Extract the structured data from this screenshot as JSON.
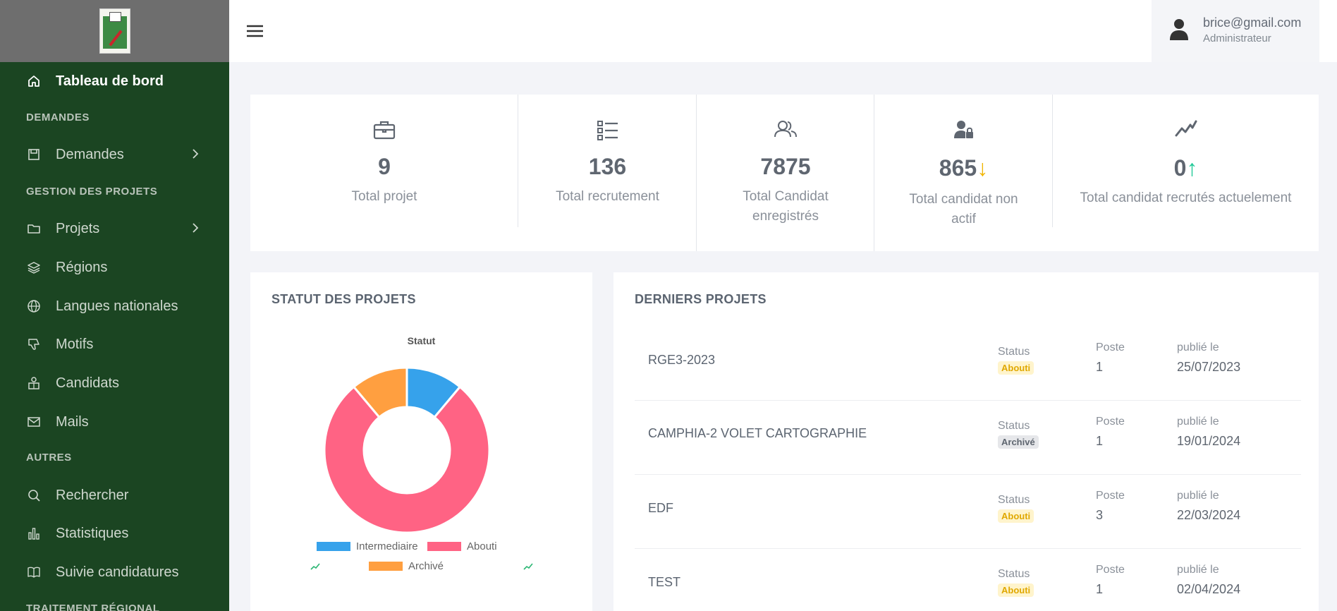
{
  "sidebar": {
    "items": [
      {
        "label": "Tableau de bord",
        "icon": "home-icon"
      },
      {
        "label": "Demandes",
        "icon": "clipboard-icon"
      },
      {
        "label": "Projets",
        "icon": "folder-icon"
      },
      {
        "label": "Régions",
        "icon": "layers-icon"
      },
      {
        "label": "Langues nationales",
        "icon": "globe-icon"
      },
      {
        "label": "Motifs",
        "icon": "thumbs-down-icon"
      },
      {
        "label": "Candidats",
        "icon": "users-icon"
      },
      {
        "label": "Mails",
        "icon": "mail-icon"
      },
      {
        "label": "Rechercher",
        "icon": "search-icon"
      },
      {
        "label": "Statistiques",
        "icon": "bar-chart-icon"
      },
      {
        "label": "Suivie candidatures",
        "icon": "book-icon"
      }
    ],
    "sections": {
      "demandes": "DEMANDES",
      "gestion": "GESTION DES PROJETS",
      "autres": "AUTRES",
      "traitement": "TRAITEMENT RÉGIONAL"
    }
  },
  "user": {
    "email": "brice@gmail.com",
    "role": "Administrateur"
  },
  "stats": [
    {
      "value": "9",
      "label": "Total projet",
      "icon": "briefcase-icon"
    },
    {
      "value": "136",
      "label": "Total recrutement",
      "icon": "list-icon"
    },
    {
      "value": "7875",
      "label_line1": "Total Candidat",
      "label_line2": "enregistrés",
      "icon": "users-icon"
    },
    {
      "value": "865",
      "arrow": "↓",
      "label_line1": "Total candidat non",
      "label_line2": "actif",
      "icon": "user-lock-icon"
    },
    {
      "value": "0",
      "arrow": "↑",
      "label": "Total candidat recrutés actuelement",
      "icon": "trend-icon"
    }
  ],
  "chart_card": {
    "title": "STATUT DES PROJETS"
  },
  "chart_data": {
    "type": "pie",
    "title": "Statut",
    "categories": [
      "Intermediaire",
      "Abouti",
      "Archivé"
    ],
    "values": [
      1,
      7,
      1
    ],
    "colors": [
      "#36a2eb",
      "#ff6384",
      "#ff9f40"
    ],
    "legend": "bottom"
  },
  "projects_card": {
    "title": "DERNIERS PROJETS",
    "col_status": "Status",
    "col_poste": "Poste",
    "col_date": "publié le",
    "rows": [
      {
        "name": "RGE3-2023",
        "status": "Abouti",
        "poste": "1",
        "date": "25/07/2023"
      },
      {
        "name": "CAMPHIA-2 VOLET CARTOGRAPHIE",
        "status": "Archivé",
        "poste": "1",
        "date": "19/01/2024"
      },
      {
        "name": "EDF",
        "status": "Abouti",
        "poste": "3",
        "date": "22/03/2024"
      },
      {
        "name": "TEST",
        "status": "Abouti",
        "poste": "1",
        "date": "02/04/2024"
      }
    ]
  },
  "colors": {
    "sidebar": "#1b4522",
    "brand": "#6e6e6e",
    "down_arrow": "#f0b400",
    "up_arrow": "#20c997"
  }
}
